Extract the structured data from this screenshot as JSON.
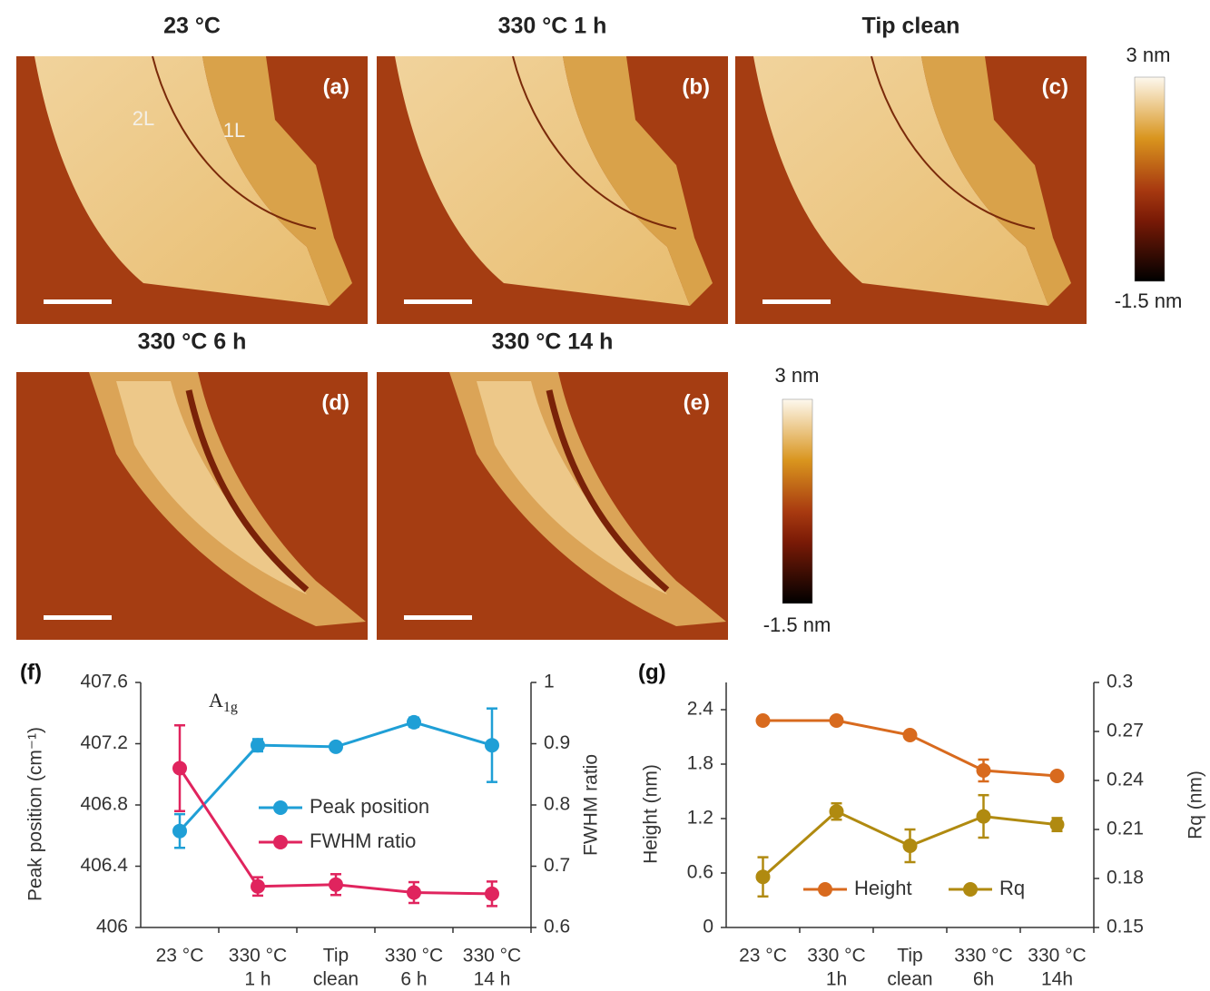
{
  "panels": [
    {
      "title": "23 °C",
      "label": "(a)",
      "annotations": [
        "2L",
        "1L"
      ]
    },
    {
      "title": "330 °C 1 h",
      "label": "(b)"
    },
    {
      "title": "Tip clean",
      "label": "(c)"
    },
    {
      "title": "330 °C 6 h",
      "label": "(d)"
    },
    {
      "title": "330 °C 14 h",
      "label": "(e)"
    }
  ],
  "colorbars": [
    {
      "max": "3 nm",
      "min": "-1.5 nm"
    },
    {
      "max": "3 nm",
      "min": "-1.5 nm"
    }
  ],
  "chart_data": [
    {
      "type": "line",
      "panel_label": "(f)",
      "annotation": {
        "base": "A",
        "sub": "1g"
      },
      "categories": [
        [
          "23 °C"
        ],
        [
          "330 °C",
          "1 h"
        ],
        [
          "Tip",
          "clean"
        ],
        [
          "330 °C",
          "6 h"
        ],
        [
          "330 °C",
          "14 h"
        ]
      ],
      "ylabel": "Peak position (cm⁻¹)",
      "y2label": "FWHM ratio",
      "ylim": [
        406,
        407.6
      ],
      "yticks": [
        406,
        406.4,
        406.8,
        407.2,
        407.6
      ],
      "y2lim": [
        0.6,
        1
      ],
      "y2ticks": [
        0.6,
        0.7,
        0.8,
        0.9,
        1
      ],
      "legend": "center right",
      "series": [
        {
          "name": "Peak position",
          "color": "#1f9fd6",
          "values": [
            406.63,
            407.19,
            407.18,
            407.34,
            407.19
          ],
          "errors": [
            0.11,
            0.04,
            0.02,
            0.03,
            0.24
          ]
        },
        {
          "name": "FWHM ratio",
          "color": "#e0245e",
          "axis": "y2",
          "values": [
            0.86,
            0.667,
            0.67,
            0.657,
            0.655
          ],
          "errors": [
            0.07,
            0.015,
            0.017,
            0.017,
            0.02
          ]
        }
      ]
    },
    {
      "type": "line",
      "panel_label": "(g)",
      "categories": [
        [
          "23 °C"
        ],
        [
          "330 °C",
          "1h"
        ],
        [
          "Tip",
          "clean"
        ],
        [
          "330 °C",
          "6h"
        ],
        [
          "330 °C",
          "14h"
        ]
      ],
      "ylabel": "Height (nm)",
      "y2label": "Rq (nm)",
      "ylim": [
        0,
        2.7
      ],
      "yticks": [
        0,
        0.6,
        1.2,
        1.8,
        2.4
      ],
      "y2lim": [
        0.15,
        0.3
      ],
      "y2ticks": [
        0.15,
        0.18,
        0.21,
        0.24,
        0.27,
        0.3
      ],
      "legend": "lower center",
      "series": [
        {
          "name": "Height",
          "color": "#d86a1e",
          "values": [
            2.28,
            2.28,
            2.12,
            1.73,
            1.67
          ],
          "errors": [
            0.02,
            0.02,
            0.02,
            0.12,
            0.02
          ]
        },
        {
          "name": "Rq",
          "color": "#b08a10",
          "axis": "y2",
          "values": [
            0.181,
            0.221,
            0.2,
            0.218,
            0.213
          ],
          "errors": [
            0.012,
            0.005,
            0.01,
            0.013,
            0.004
          ]
        }
      ]
    }
  ]
}
